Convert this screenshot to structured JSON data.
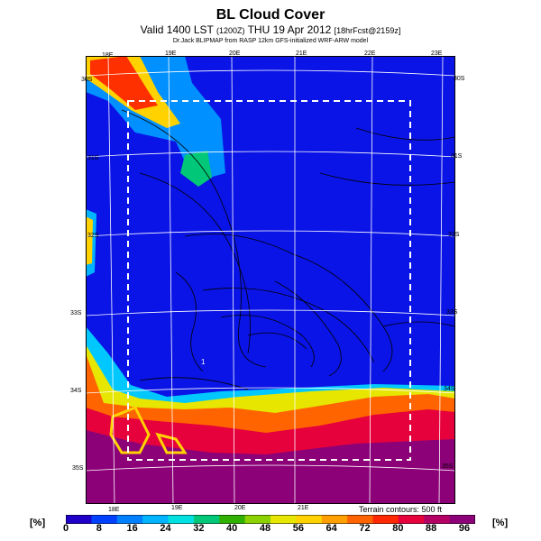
{
  "header": {
    "title": "BL Cloud Cover",
    "valid_text": "Valid 1400 LST",
    "code_text": "(1200Z)",
    "date_text": "THU 19 Apr 2012",
    "forecast_text": "[18hrFcst@2159z]",
    "credit": "Dr.Jack BLIPMAP from RASP 12km GFS-initialized WRF-ARW model"
  },
  "map": {
    "lon_labels_top": [
      "18E",
      "19E",
      "20E",
      "21E",
      "22E",
      "23E"
    ],
    "lon_labels_bottom": [
      "18E",
      "19E",
      "20E",
      "21E"
    ],
    "lat_labels_left": [
      "30S",
      "31S",
      "32S",
      "33S",
      "34S",
      "35S"
    ],
    "lat_labels_right": [
      "30S",
      "31S",
      "32S",
      "33S",
      "34S",
      "35S"
    ],
    "terrain_note": "Terrain contours: 500 ft",
    "marker": "1"
  },
  "colorbar": {
    "unit_left": "[%]",
    "unit_right": "[%]",
    "ticks": [
      "0",
      "8",
      "16",
      "24",
      "32",
      "40",
      "48",
      "56",
      "64",
      "72",
      "80",
      "88",
      "96"
    ],
    "colors": [
      "#1e00c8",
      "#0040ff",
      "#0080ff",
      "#00b4ff",
      "#00e0e0",
      "#00c878",
      "#30b000",
      "#8cd200",
      "#e6e600",
      "#ffd200",
      "#ffa000",
      "#ff6400",
      "#ff2800",
      "#e6003c",
      "#b40064",
      "#8c0078"
    ]
  }
}
